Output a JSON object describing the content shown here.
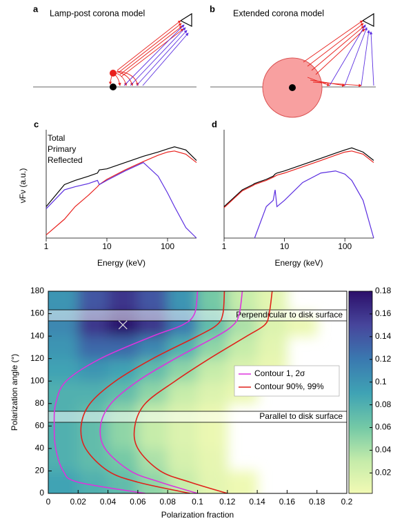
{
  "panels": [
    {
      "label": "a",
      "title": "Lamp-post corona model"
    },
    {
      "label": "b",
      "title": "Extended corona model"
    }
  ],
  "chart_data": [
    {
      "type": "line",
      "panel_label": "c",
      "log_x": true,
      "xlim": [
        1,
        300
      ],
      "ylim": [
        0,
        1
      ],
      "xticks": [
        1,
        10,
        100
      ],
      "xlabel": "Energy (keV)",
      "ylabel": "νFν (a.u.)",
      "legend": true,
      "x": [
        1,
        2,
        3,
        5,
        7,
        7.5,
        10,
        20,
        40,
        70,
        100,
        130,
        200,
        300
      ],
      "series": [
        {
          "name": "Total",
          "color": "#000000",
          "values": [
            0.3,
            0.51,
            0.55,
            0.59,
            0.62,
            0.65,
            0.66,
            0.72,
            0.78,
            0.82,
            0.85,
            0.87,
            0.84,
            0.74
          ]
        },
        {
          "name": "Primary",
          "color": "#e8201c",
          "values": [
            0.03,
            0.18,
            0.3,
            0.41,
            0.49,
            0.51,
            0.56,
            0.65,
            0.73,
            0.79,
            0.82,
            0.83,
            0.8,
            0.72
          ]
        },
        {
          "name": "Reflected",
          "color": "#5a2de0",
          "values": [
            0.28,
            0.46,
            0.49,
            0.52,
            0.55,
            0.51,
            0.55,
            0.64,
            0.72,
            0.59,
            0.43,
            0.3,
            0.1,
            0.0
          ]
        }
      ]
    },
    {
      "type": "line",
      "panel_label": "d",
      "log_x": true,
      "xlim": [
        1,
        300
      ],
      "ylim": [
        0,
        1
      ],
      "xticks": [
        1,
        10,
        100
      ],
      "xlabel": "Energy (keV)",
      "legend": false,
      "x": [
        1,
        2,
        3,
        3.2,
        5,
        6.5,
        7,
        7.5,
        10,
        20,
        40,
        70,
        100,
        130,
        200,
        300
      ],
      "series": [
        {
          "color": "#000000",
          "values": [
            0.3,
            0.46,
            0.51,
            0.52,
            0.56,
            0.59,
            0.61,
            0.62,
            0.64,
            0.7,
            0.76,
            0.81,
            0.84,
            0.86,
            0.82,
            0.74
          ]
        },
        {
          "color": "#e8201c",
          "values": [
            0.29,
            0.45,
            0.5,
            0.51,
            0.55,
            0.58,
            0.59,
            0.6,
            0.62,
            0.68,
            0.74,
            0.79,
            0.82,
            0.83,
            0.8,
            0.72
          ]
        },
        {
          "color": "#5a2de0",
          "values": [
            null,
            null,
            null,
            0.0,
            0.3,
            0.36,
            0.46,
            0.3,
            0.36,
            0.53,
            0.62,
            0.64,
            0.61,
            0.55,
            0.36,
            0.0
          ]
        }
      ]
    },
    {
      "type": "heatmap",
      "xlim": [
        0,
        0.2
      ],
      "ylim": [
        0,
        180
      ],
      "xticks": [
        0,
        0.02,
        0.04,
        0.06,
        0.08,
        0.1,
        0.12,
        0.14,
        0.16,
        0.18,
        0.2
      ],
      "yticks": [
        0,
        20,
        40,
        60,
        80,
        100,
        120,
        140,
        160,
        180
      ],
      "xlabel": "Polarization fraction",
      "ylabel": "Polarization angle (°)",
      "x_bins": [
        0,
        0.02,
        0.04,
        0.06,
        0.08,
        0.1,
        0.12,
        0.14,
        0.16,
        0.18
      ],
      "y_bins": [
        0,
        20,
        40,
        60,
        80,
        100,
        120,
        140,
        160,
        180
      ],
      "z": [
        [
          0.09,
          0.08,
          0.07,
          0.05,
          0.03,
          0.01,
          0.003,
          null,
          null
        ],
        [
          0.08,
          0.07,
          0.06,
          0.04,
          0.02,
          0.008,
          null,
          null,
          null
        ],
        [
          0.08,
          0.07,
          0.05,
          0.03,
          0.015,
          0.005,
          null,
          null,
          null
        ],
        [
          0.08,
          0.07,
          0.05,
          0.03,
          0.015,
          0.005,
          null,
          null,
          null
        ],
        [
          0.08,
          0.08,
          0.07,
          0.05,
          0.03,
          0.015,
          0.005,
          null,
          null
        ],
        [
          0.09,
          0.1,
          0.09,
          0.07,
          0.05,
          0.03,
          0.015,
          0.005,
          null
        ],
        [
          0.1,
          0.13,
          0.13,
          0.11,
          0.08,
          0.05,
          0.03,
          0.01,
          null
        ],
        [
          0.11,
          0.16,
          0.18,
          0.16,
          0.12,
          0.07,
          0.04,
          0.015,
          0.005
        ],
        [
          0.1,
          0.14,
          0.16,
          0.14,
          0.1,
          0.06,
          0.03,
          0.01,
          null
        ]
      ],
      "colorscale": [
        [
          0,
          "#f2fab4"
        ],
        [
          0.03,
          "#c6ecaa"
        ],
        [
          0.06,
          "#74c9a6"
        ],
        [
          0.09,
          "#3fa3b4"
        ],
        [
          0.12,
          "#3a79b0"
        ],
        [
          0.15,
          "#47469c"
        ],
        [
          0.18,
          "#2c0f6a"
        ]
      ],
      "clim": [
        0.002,
        0.18
      ],
      "cticks": [
        0.02,
        0.04,
        0.06,
        0.08,
        0.1,
        0.12,
        0.14,
        0.16,
        0.18
      ],
      "bands": [
        {
          "ylim": [
            153.6,
            163.4
          ],
          "label": "Perpendicular to disk surface"
        },
        {
          "ylim": [
            63.3,
            73.1
          ],
          "label": "Parallel to disk surface"
        }
      ],
      "best_fit": {
        "x": 0.05,
        "y": 150
      },
      "contours": [
        {
          "name": "Contour 1, 2σ",
          "color": "#dd33dd",
          "curves": [
            {
              "x": [
                0.1,
                0.098,
                0.09,
                0.07,
                0.035,
                0.012,
                0.005,
                0.004,
                0.005,
                0.01,
                0.02,
                0.065
              ],
              "y": [
                180,
                160,
                150,
                140,
                120,
                100,
                80,
                60,
                40,
                20,
                10,
                0
              ]
            },
            {
              "x": [
                0.13,
                0.128,
                0.124,
                0.113,
                0.085,
                0.06,
                0.042,
                0.035,
                0.038,
                0.055,
                0.075,
                0.1
              ],
              "y": [
                180,
                160,
                150,
                140,
                120,
                100,
                80,
                60,
                40,
                20,
                10,
                0
              ]
            }
          ]
        },
        {
          "name": "Contour 90%, 99%",
          "color": "#e0201a",
          "curves": [
            {
              "x": [
                0.118,
                0.117,
                0.113,
                0.1,
                0.07,
                0.045,
                0.028,
                0.022,
                0.025,
                0.04,
                0.06,
                0.095
              ],
              "y": [
                180,
                160,
                150,
                140,
                120,
                100,
                80,
                60,
                40,
                20,
                10,
                0
              ]
            },
            {
              "x": [
                0.15,
                0.148,
                0.145,
                0.133,
                0.108,
                0.085,
                0.065,
                0.058,
                0.06,
                0.075,
                0.095,
                0.12
              ],
              "y": [
                180,
                160,
                150,
                140,
                120,
                100,
                80,
                60,
                40,
                20,
                10,
                0
              ]
            }
          ]
        }
      ]
    }
  ]
}
